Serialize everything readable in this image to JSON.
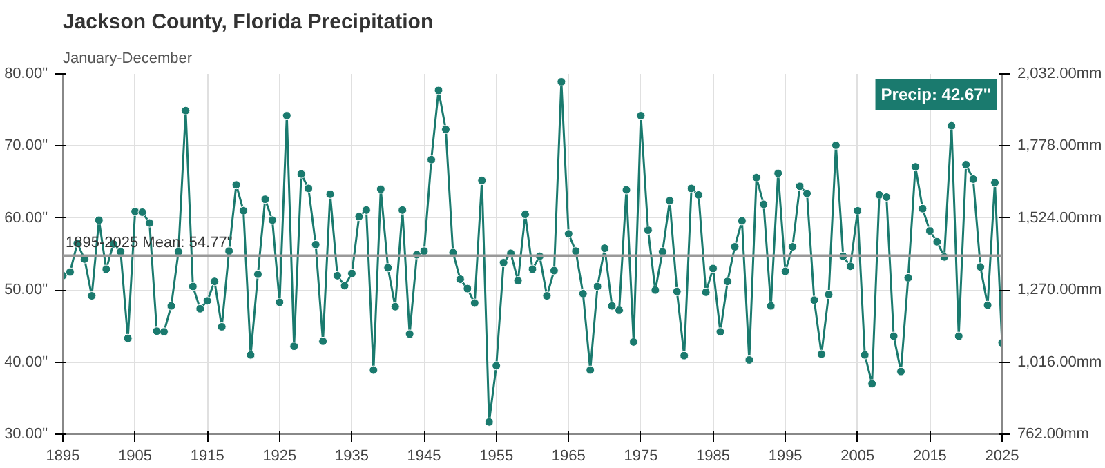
{
  "chart_data": {
    "type": "line",
    "title": "Jackson County, Florida Precipitation",
    "subtitle": "January-December",
    "x": [
      1895,
      1896,
      1897,
      1898,
      1899,
      1900,
      1901,
      1902,
      1903,
      1904,
      1905,
      1906,
      1907,
      1908,
      1909,
      1910,
      1911,
      1912,
      1913,
      1914,
      1915,
      1916,
      1917,
      1918,
      1919,
      1920,
      1921,
      1922,
      1923,
      1924,
      1925,
      1926,
      1927,
      1928,
      1929,
      1930,
      1931,
      1932,
      1933,
      1934,
      1935,
      1936,
      1937,
      1938,
      1939,
      1940,
      1941,
      1942,
      1943,
      1944,
      1945,
      1946,
      1947,
      1948,
      1949,
      1950,
      1951,
      1952,
      1953,
      1954,
      1955,
      1956,
      1957,
      1958,
      1959,
      1960,
      1961,
      1962,
      1963,
      1964,
      1965,
      1966,
      1967,
      1968,
      1969,
      1970,
      1971,
      1972,
      1973,
      1974,
      1975,
      1976,
      1977,
      1978,
      1979,
      1980,
      1981,
      1982,
      1983,
      1984,
      1985,
      1986,
      1987,
      1988,
      1989,
      1990,
      1991,
      1992,
      1993,
      1994,
      1995,
      1996,
      1997,
      1998,
      1999,
      2000,
      2001,
      2002,
      2003,
      2004,
      2005,
      2006,
      2007,
      2008,
      2009,
      2010,
      2011,
      2012,
      2013,
      2014,
      2015,
      2016,
      2017,
      2018,
      2019,
      2020,
      2021,
      2022,
      2023,
      2024,
      2025
    ],
    "series": [
      {
        "color": "#1a7a6e",
        "values": [
          52.0,
          52.5,
          56.5,
          54.3,
          49.2,
          59.7,
          52.9,
          56.4,
          55.3,
          43.3,
          60.9,
          60.8,
          59.3,
          44.3,
          44.2,
          47.8,
          55.3,
          74.9,
          50.5,
          47.4,
          48.5,
          51.2,
          44.9,
          55.4,
          64.6,
          61.0,
          41.0,
          52.2,
          62.6,
          59.7,
          48.3,
          74.2,
          42.2,
          66.1,
          64.1,
          56.3,
          42.9,
          63.3,
          52.0,
          50.6,
          52.3,
          60.2,
          61.1,
          38.9,
          64.0,
          53.1,
          47.7,
          61.1,
          43.9,
          54.9,
          55.4,
          68.1,
          77.7,
          72.3,
          55.2,
          51.5,
          50.2,
          48.2,
          65.2,
          31.7,
          39.5,
          53.8,
          55.1,
          51.3,
          60.5,
          52.9,
          54.7,
          49.2,
          52.7,
          78.9,
          57.8,
          55.4,
          49.5,
          38.9,
          50.5,
          55.8,
          47.8,
          47.2,
          63.9,
          42.8,
          74.2,
          58.3,
          50.0,
          55.3,
          62.4,
          49.8,
          40.9,
          64.1,
          63.2,
          49.7,
          53.0,
          44.2,
          51.2,
          56.0,
          59.6,
          40.3,
          65.6,
          61.9,
          47.8,
          66.2,
          52.6,
          56.0,
          64.4,
          63.4,
          48.6,
          41.1,
          49.4,
          70.1,
          54.7,
          53.3,
          61.0,
          41.0,
          37.0,
          63.2,
          62.9,
          43.6,
          38.7,
          51.7,
          67.1,
          61.3,
          58.2,
          56.7,
          54.6,
          72.8,
          43.6,
          67.4,
          65.4,
          53.2,
          47.9,
          64.9,
          42.67
        ]
      }
    ],
    "xlim": [
      1895,
      2025
    ],
    "xticks": [
      1895,
      1905,
      1915,
      1925,
      1935,
      1945,
      1955,
      1965,
      1975,
      1985,
      1995,
      2005,
      2015,
      2025
    ],
    "ylim": [
      30,
      80
    ],
    "yticks": [
      {
        "value": 30,
        "label": "30.00\""
      },
      {
        "value": 40,
        "label": "40.00\""
      },
      {
        "value": 50,
        "label": "50.00\""
      },
      {
        "value": 60,
        "label": "60.00\""
      },
      {
        "value": 70,
        "label": "70.00\""
      },
      {
        "value": 80,
        "label": "80.00\""
      }
    ],
    "y2lim": [
      762,
      2032
    ],
    "y2ticks": [
      {
        "value": 762,
        "label": "762.00mm"
      },
      {
        "value": 1016,
        "label": "1,016.00mm"
      },
      {
        "value": 1270,
        "label": "1,270.00mm"
      },
      {
        "value": 1524,
        "label": "1,524.00mm"
      },
      {
        "value": 1778,
        "label": "1,778.00mm"
      },
      {
        "value": 2032,
        "label": "2,032.00mm"
      }
    ],
    "ref_lines": [
      {
        "axis": "y",
        "value": 54.77,
        "label": "1895-2025 Mean: 54.77\"",
        "color": "#999999"
      }
    ],
    "annotations": [
      "Precip: 42.67\""
    ],
    "grid": true,
    "marker": "circle",
    "line_style": "solid"
  }
}
